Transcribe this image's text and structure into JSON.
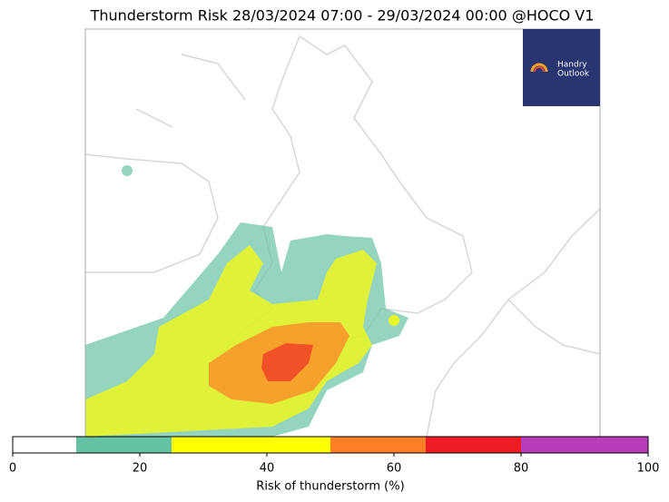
{
  "map": {
    "title": "Thunderstorm Risk 28/03/2024 07:00 - 29/03/2024 00:00 @HOCO V1",
    "logo": {
      "line1": "Handry",
      "line2": "Outlook"
    },
    "colorbar": {
      "bounds": [
        0,
        10,
        25,
        50,
        65,
        80,
        100
      ],
      "colors": [
        "#ffffff",
        "#66c2a5",
        "#ffff00",
        "#ff7f27",
        "#ee1c25",
        "#b83dba"
      ],
      "ticks": [
        0,
        20,
        40,
        60,
        80,
        100
      ],
      "label": "Risk of thunderstorm (%)"
    }
  }
}
